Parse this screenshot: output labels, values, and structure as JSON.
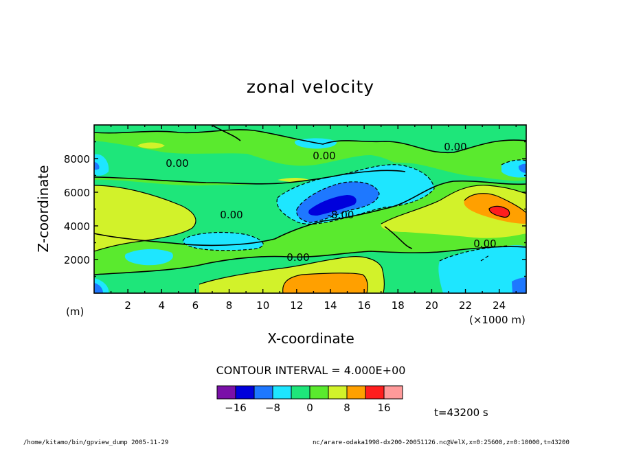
{
  "chart_data": {
    "type": "contour",
    "title": "zonal velocity",
    "xlabel": "X-coordinate",
    "ylabel": "Z-coordinate",
    "x_unit": "(×1000 m)",
    "y_unit": "(m)",
    "xlim": [
      0,
      25.6
    ],
    "ylim": [
      0,
      10000
    ],
    "x_ticks": [
      "2",
      "4",
      "6",
      "8",
      "10",
      "12",
      "14",
      "16",
      "18",
      "20",
      "22",
      "24"
    ],
    "y_ticks": [
      "2000",
      "4000",
      "6000",
      "8000"
    ],
    "contour_interval_text": "CONTOUR INTERVAL = 4.000E+00",
    "contour_labels": [
      "0.00",
      "0.00",
      "0.00",
      "0.00",
      "0.00",
      "0.00",
      "-8.00"
    ],
    "colorbar": {
      "levels": [
        -20,
        -16,
        -12,
        -8,
        -4,
        0,
        4,
        8,
        12,
        16,
        20
      ],
      "colors": [
        "#7a10a8",
        "#0000dc",
        "#1e78ff",
        "#1ee6ff",
        "#1ee67a",
        "#5aea2e",
        "#d2f22a",
        "#ffa000",
        "#ff1e1e",
        "#ff9a9a"
      ],
      "labels": [
        "−16",
        "−8",
        "0",
        "8",
        "16"
      ]
    },
    "regions": [
      {
        "value_range": "-4 to 0",
        "x": [
          16,
          22
        ],
        "z": [
          5500,
          7500
        ]
      },
      {
        "value_range": "-4 to 0",
        "x": [
          21,
          25.6
        ],
        "z": [
          0,
          3000
        ]
      },
      {
        "value_range": "-4 to 0",
        "x": [
          5,
          12
        ],
        "z": [
          2500,
          3500
        ]
      },
      {
        "value_range": "-8 to -4",
        "x": [
          12,
          17
        ],
        "z": [
          4000,
          6200
        ]
      },
      {
        "value_range": "-12 to -8",
        "x": [
          13,
          16
        ],
        "z": [
          4500,
          5500
        ]
      },
      {
        "value_range": "4 to 8",
        "x": [
          0,
          6
        ],
        "z": [
          3000,
          6500
        ]
      },
      {
        "value_range": "4 to 8",
        "x": [
          17,
          25.6
        ],
        "z": [
          3500,
          6000
        ]
      },
      {
        "value_range": "4 to 8",
        "x": [
          5,
          17
        ],
        "z": [
          0,
          2000
        ]
      },
      {
        "value_range": "8 to 12",
        "x": [
          12,
          16
        ],
        "z": [
          0,
          1200
        ]
      },
      {
        "value_range": "8 to 12",
        "x": [
          22,
          25.6
        ],
        "z": [
          4000,
          6000
        ]
      },
      {
        "value_range": "12 to 16",
        "x": [
          23,
          24.5
        ],
        "z": [
          4500,
          5200
        ]
      }
    ]
  },
  "time_text": "t=43200 s",
  "footer_left": "/home/kitamo/bin/gpview_dump  2005-11-29",
  "footer_right": "nc/arare-odaka1998-dx200-20051126.nc@VelX,x=0:25600,z=0:10000,t=43200"
}
